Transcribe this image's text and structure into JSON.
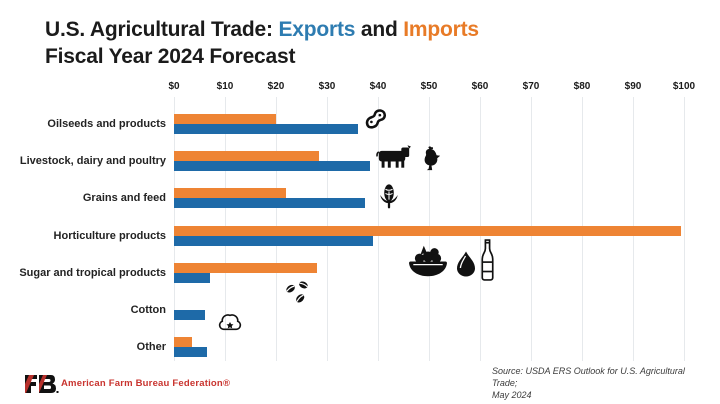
{
  "header": {
    "title_prefix": "U.S. Agricultural Trade: ",
    "title_exports": "Exports",
    "title_and": " and ",
    "title_imports": "Imports",
    "subtitle": "Fiscal Year 2024 Forecast"
  },
  "chart_data": {
    "type": "bar",
    "orientation": "horizontal",
    "title": "U.S. Agricultural Trade: Exports and Imports — Fiscal Year 2024 Forecast",
    "unit": "billion USD",
    "xlim": [
      0,
      100
    ],
    "x_ticks": [
      "$0",
      "$10",
      "$20",
      "$30",
      "$40",
      "$50",
      "$60",
      "$70",
      "$80",
      "$90",
      "$100"
    ],
    "grid": true,
    "legend_position": "in-title",
    "bar_order_top_to_bottom_within_category": [
      "Imports",
      "Exports"
    ],
    "categories": [
      "Oilseeds and products",
      "Livestock, dairy and poultry",
      "Grains and feed",
      "Horticulture products",
      "Sugar and tropical products",
      "Cotton",
      "Other"
    ],
    "series": [
      {
        "name": "Imports",
        "color": "#ee8434",
        "values": [
          20,
          28.5,
          22,
          99.5,
          28,
          0,
          3.5
        ]
      },
      {
        "name": "Exports",
        "color": "#1e6aa8",
        "values": [
          36,
          38.5,
          37.5,
          39,
          7,
          6,
          6.5
        ]
      }
    ],
    "category_icons": [
      [
        "peanut-icon"
      ],
      [
        "cow-icon",
        "chicken-icon"
      ],
      [
        "corn-icon"
      ],
      [
        "produce-basket-icon",
        "almond-icon",
        "bottle-icon"
      ],
      [
        "coffee-beans-icon"
      ],
      [
        "cotton-boll-icon"
      ],
      []
    ]
  },
  "footer": {
    "logo_text": "FB",
    "brand": "American Farm Bureau Federation®",
    "source_line1": "Source: USDA ERS Outlook for U.S. Agricultural Trade;",
    "source_line2": "May 2024"
  },
  "colors": {
    "exports_blue": "#1e6aa8",
    "imports_orange": "#ee8434",
    "title_exports_blue": "#2e7cb1",
    "title_imports_orange": "#e87b27",
    "brand_red": "#c9342f",
    "gridline": "#e6e9ec"
  }
}
